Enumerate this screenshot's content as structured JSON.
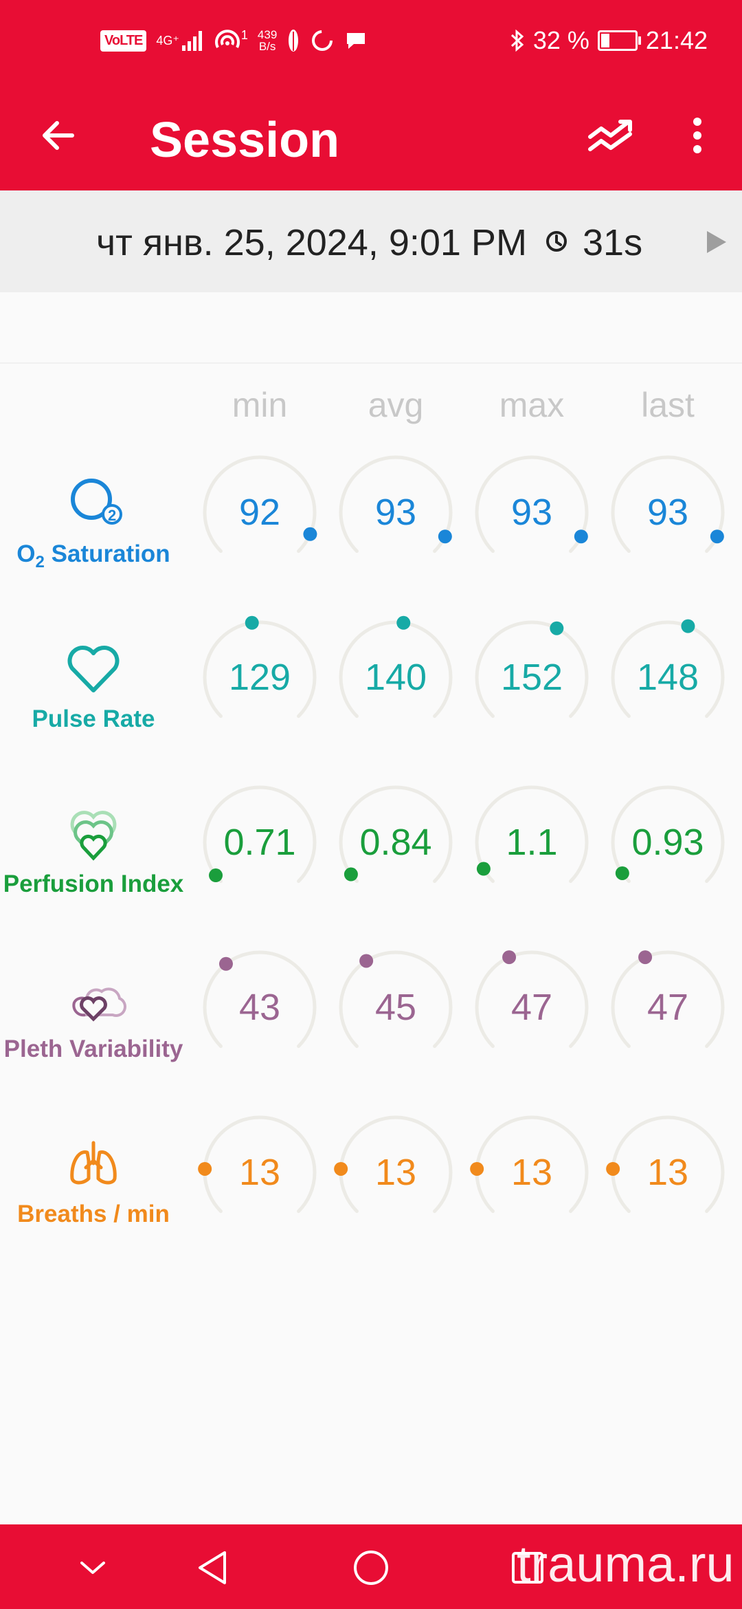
{
  "status_bar": {
    "volte": "VoLTE",
    "network": "4G⁺",
    "hotspot_count": "1",
    "speed_value": "439",
    "speed_unit": "B/s",
    "battery": "32 %",
    "time": "21:42"
  },
  "app_bar": {
    "title": "Session",
    "icons": [
      "back-arrow-icon",
      "trend-icon",
      "more-vert-icon"
    ]
  },
  "session": {
    "date": "чт янв. 25, 2024, 9:01 PM",
    "duration": "31s"
  },
  "columns": [
    "min",
    "avg",
    "max",
    "last"
  ],
  "metrics": [
    {
      "name": "O₂ Saturation",
      "label_main": "O",
      "label_sub": "2",
      "label_rest": " Saturation",
      "color": "#1a86d8",
      "icon": "o2-bubble-icon",
      "values": [
        "92",
        "93",
        "93",
        "93"
      ],
      "levels": [
        0.92,
        0.93,
        0.93,
        0.93
      ]
    },
    {
      "name": "Pulse Rate",
      "label": "Pulse Rate",
      "color": "#17aaa6",
      "icon": "heart-icon",
      "values": [
        "129",
        "140",
        "152",
        "148"
      ],
      "levels": [
        0.47,
        0.53,
        0.6,
        0.58
      ]
    },
    {
      "name": "Perfusion Index",
      "label": "Perfusion Index",
      "color": "#1a9e3c",
      "icon": "perfusion-hearts-icon",
      "values": [
        "0.71",
        "0.84",
        "1.1",
        "0.93"
      ],
      "levels": [
        0.03,
        0.035,
        0.06,
        0.04
      ]
    },
    {
      "name": "Pleth Variability",
      "label": "Pleth Variability",
      "color": "#9b6591",
      "icon": "pleth-hearts-icon",
      "values": [
        "43",
        "45",
        "47",
        "47"
      ],
      "levels": [
        0.36,
        0.38,
        0.41,
        0.41
      ]
    },
    {
      "name": "Breaths / min",
      "label": "Breaths / min",
      "color": "#f18a1c",
      "icon": "lungs-icon",
      "values": [
        "13",
        "13",
        "13",
        "13"
      ],
      "levels": [
        0.18,
        0.18,
        0.18,
        0.18
      ]
    }
  ],
  "nav_bar": {
    "icons": [
      "collapse-icon",
      "back-triangle-icon",
      "home-circle-icon",
      "recents-square-icon"
    ]
  },
  "watermark": "trauma.ru",
  "colors": {
    "primary": "#e80d34",
    "track": "#ecebe6",
    "column_header": "#c8c8c8"
  }
}
